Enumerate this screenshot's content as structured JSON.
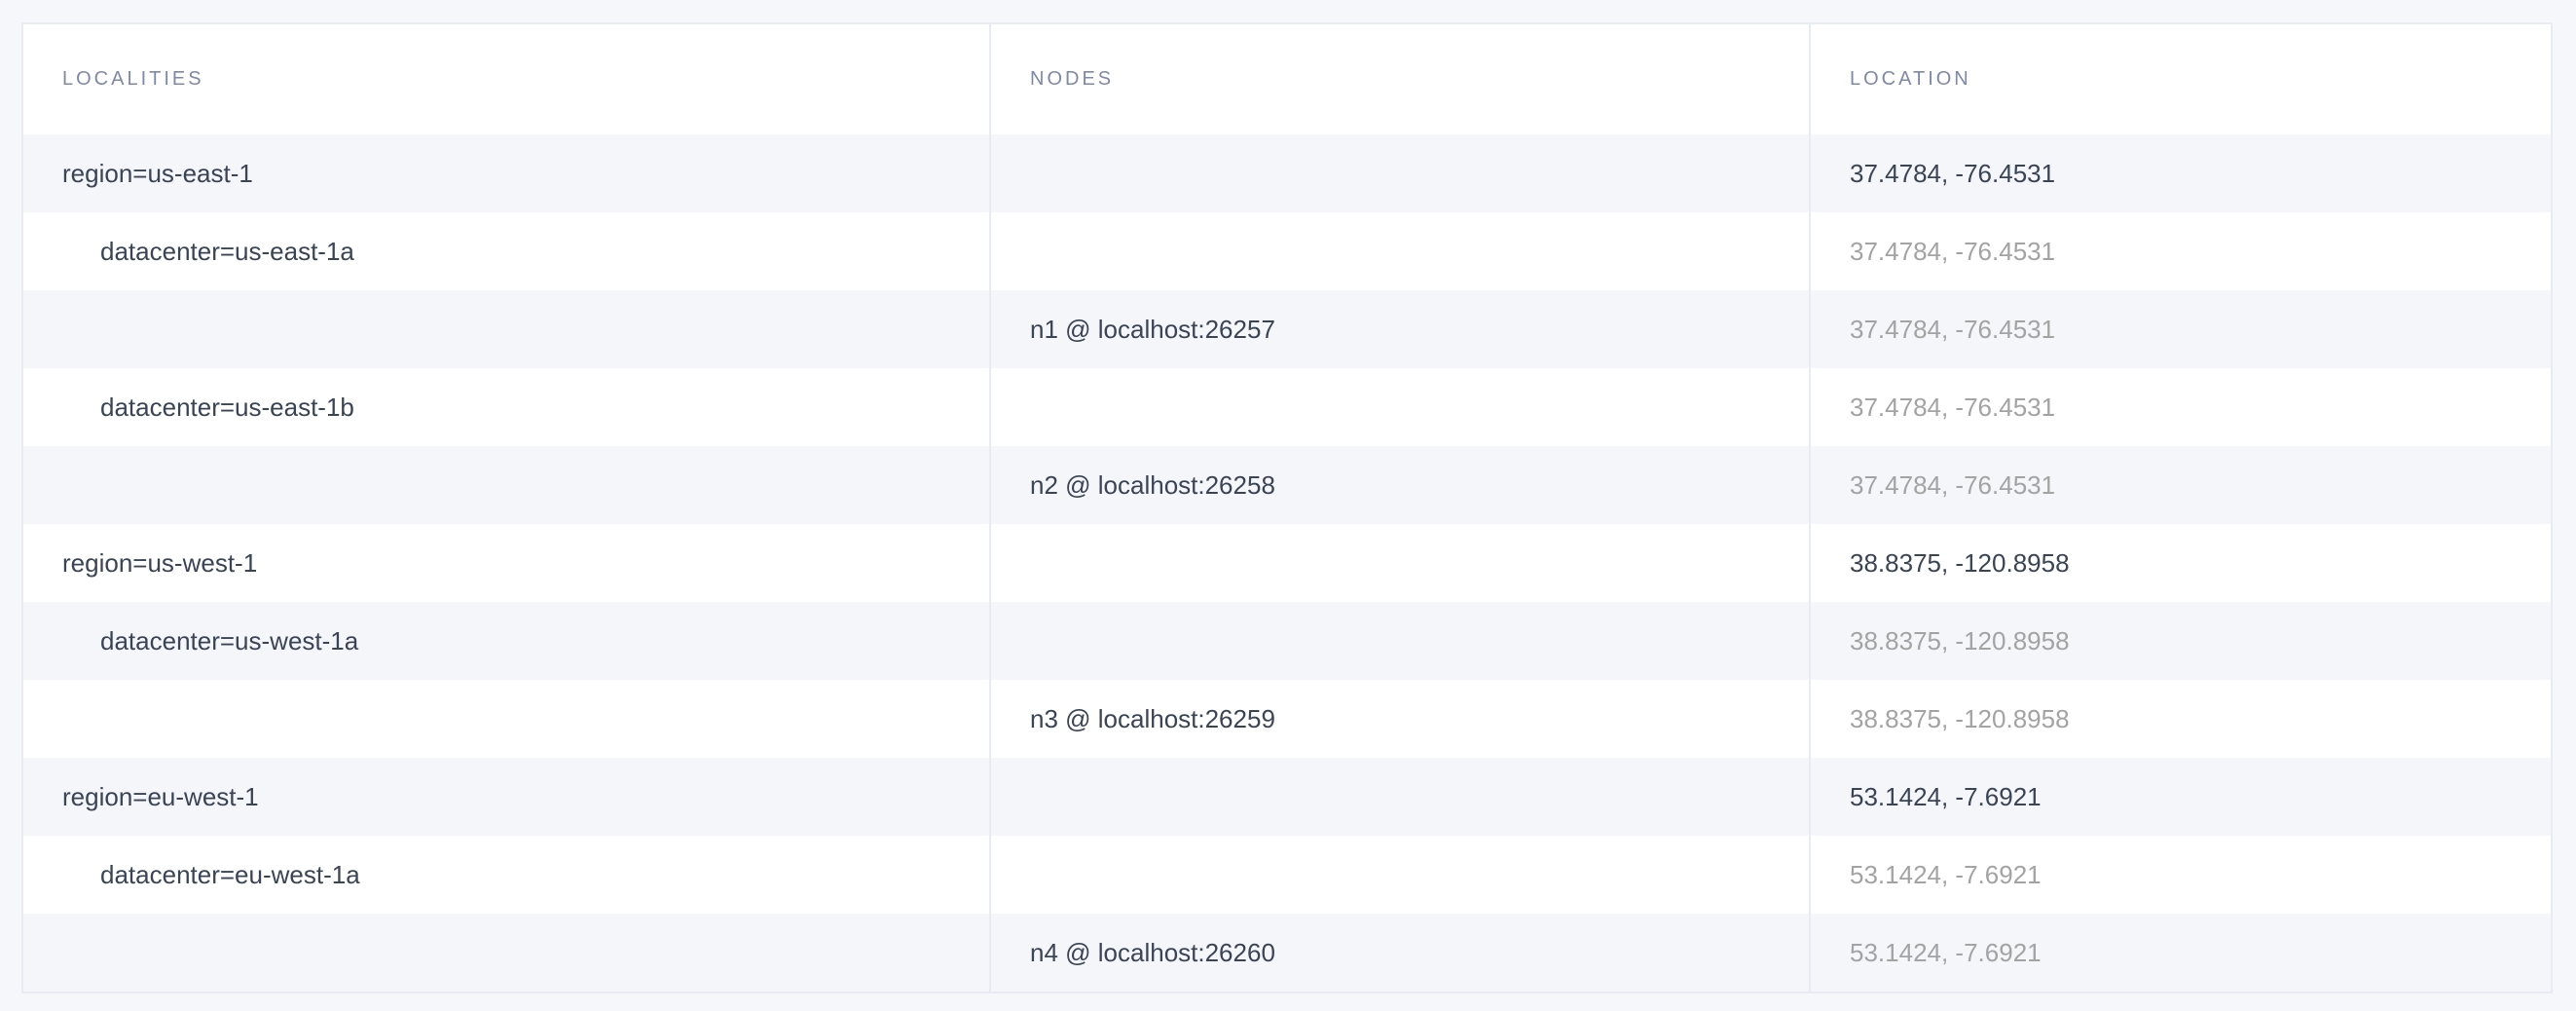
{
  "columns": [
    "LOCALITIES",
    "NODES",
    "LOCATION"
  ],
  "rows": [
    {
      "locality": "region=us-east-1",
      "level": 0,
      "node": "",
      "location": "37.4784, -76.4531",
      "location_dim": false
    },
    {
      "locality": "datacenter=us-east-1a",
      "level": 1,
      "node": "",
      "location": "37.4784, -76.4531",
      "location_dim": true
    },
    {
      "locality": "",
      "level": 2,
      "node": "n1 @ localhost:26257",
      "location": "37.4784, -76.4531",
      "location_dim": true
    },
    {
      "locality": "datacenter=us-east-1b",
      "level": 1,
      "node": "",
      "location": "37.4784, -76.4531",
      "location_dim": true
    },
    {
      "locality": "",
      "level": 2,
      "node": "n2 @ localhost:26258",
      "location": "37.4784, -76.4531",
      "location_dim": true
    },
    {
      "locality": "region=us-west-1",
      "level": 0,
      "node": "",
      "location": "38.8375, -120.8958",
      "location_dim": false
    },
    {
      "locality": "datacenter=us-west-1a",
      "level": 1,
      "node": "",
      "location": "38.8375, -120.8958",
      "location_dim": true
    },
    {
      "locality": "",
      "level": 2,
      "node": "n3 @ localhost:26259",
      "location": "38.8375, -120.8958",
      "location_dim": true
    },
    {
      "locality": "region=eu-west-1",
      "level": 0,
      "node": "",
      "location": "53.1424, -7.6921",
      "location_dim": false
    },
    {
      "locality": "datacenter=eu-west-1a",
      "level": 1,
      "node": "",
      "location": "53.1424, -7.6921",
      "location_dim": true
    },
    {
      "locality": "",
      "level": 2,
      "node": "n4 @ localhost:26260",
      "location": "53.1424, -7.6921",
      "location_dim": true
    }
  ]
}
